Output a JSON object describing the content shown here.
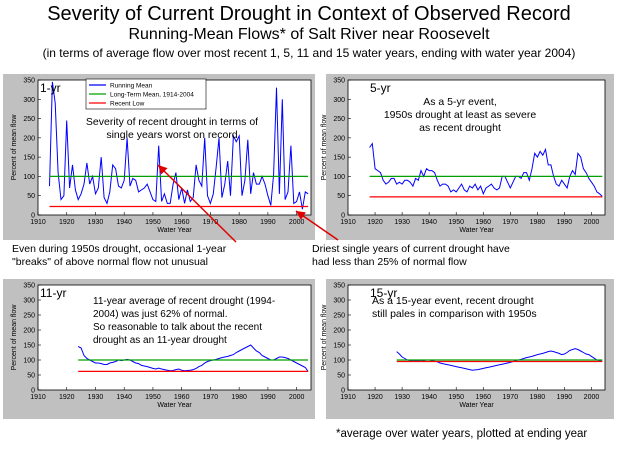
{
  "header": {
    "title": "Severity of Current Drought in Context of Observed Record",
    "subtitle": "Running-Mean Flows* of Salt River near Roosevelt",
    "subtitle2": "(in terms of average flow over most recent 1, 5, 11 and 15 water years, ending with water year 2004)"
  },
  "footnote": "*average over water years, plotted at ending year",
  "notes": {
    "n1950s": [
      "Even during 1950s drought, occasional 1-year",
      "\"breaks\" of above normal flow not unusual"
    ],
    "ndriest": [
      "Driest single years of current drought have",
      "had less than 25% of normal flow"
    ]
  },
  "colors": {
    "running": "#0000ff",
    "longterm": "#00a000",
    "recent": "#ff0000",
    "arrow": "#e00000",
    "panel": "#c0c0c0"
  },
  "chart_data": [
    {
      "type": "line",
      "label": "1-yr",
      "ylabel": "Percent of mean flow",
      "xlabel": "Water Year",
      "xlim": [
        1910,
        2005
      ],
      "ylim": [
        0,
        350
      ],
      "xticks": [
        1910,
        1920,
        1930,
        1940,
        1950,
        1960,
        1970,
        1980,
        1990,
        2000
      ],
      "yticks": [
        0,
        50,
        100,
        150,
        200,
        250,
        300,
        350
      ],
      "legend": {
        "entries": [
          "Running Mean",
          "Long-Term Mean, 1914-2004",
          "Recent Low"
        ],
        "placement": "top"
      },
      "annotation": [
        "Severity of recent drought in terms of",
        "single years worst on record"
      ],
      "series": [
        {
          "name": "Running Mean",
          "x": [
            1914,
            1915,
            1916,
            1917,
            1918,
            1919,
            1920,
            1921,
            1922,
            1923,
            1924,
            1925,
            1926,
            1927,
            1928,
            1929,
            1930,
            1931,
            1932,
            1933,
            1934,
            1935,
            1936,
            1937,
            1938,
            1939,
            1940,
            1941,
            1942,
            1943,
            1944,
            1945,
            1946,
            1947,
            1948,
            1949,
            1950,
            1951,
            1952,
            1953,
            1954,
            1955,
            1956,
            1957,
            1958,
            1959,
            1960,
            1961,
            1962,
            1963,
            1964,
            1965,
            1966,
            1967,
            1968,
            1969,
            1970,
            1971,
            1972,
            1973,
            1974,
            1975,
            1976,
            1977,
            1978,
            1979,
            1980,
            1981,
            1982,
            1983,
            1984,
            1985,
            1986,
            1987,
            1988,
            1989,
            1990,
            1991,
            1992,
            1993,
            1994,
            1995,
            1996,
            1997,
            1998,
            1999,
            2000,
            2001,
            2002,
            2003,
            2004
          ],
          "values": [
            75,
            345,
            290,
            110,
            40,
            50,
            245,
            70,
            130,
            65,
            40,
            55,
            80,
            135,
            80,
            100,
            55,
            70,
            150,
            45,
            30,
            60,
            130,
            120,
            75,
            70,
            90,
            200,
            75,
            95,
            90,
            60,
            65,
            70,
            80,
            60,
            40,
            35,
            180,
            35,
            55,
            30,
            30,
            80,
            110,
            40,
            70,
            30,
            65,
            35,
            45,
            130,
            90,
            75,
            200,
            50,
            30,
            55,
            125,
            200,
            45,
            80,
            140,
            50,
            205,
            190,
            205,
            50,
            90,
            195,
            55,
            110,
            80,
            80,
            100,
            80,
            50,
            25,
            105,
            330,
            55,
            300,
            40,
            60,
            180,
            30,
            35,
            60,
            15,
            60,
            55
          ]
        },
        {
          "name": "Long-Term Mean, 1914-2004",
          "x": [
            1914,
            2004
          ],
          "values": [
            100,
            100
          ]
        },
        {
          "name": "Recent Low",
          "x": [
            1914,
            2004
          ],
          "values": [
            22,
            22
          ]
        }
      ]
    },
    {
      "type": "line",
      "label": "5-yr",
      "ylabel": "Percent of mean flow",
      "xlabel": "Water Year",
      "xlim": [
        1910,
        2005
      ],
      "ylim": [
        0,
        350
      ],
      "xticks": [
        1910,
        1920,
        1930,
        1940,
        1950,
        1960,
        1970,
        1980,
        1990,
        2000
      ],
      "yticks": [
        0,
        50,
        100,
        150,
        200,
        250,
        300,
        350
      ],
      "annotation": [
        "As a 5-yr event,",
        "1950s drought at least as severe",
        "as recent drought"
      ],
      "series": [
        {
          "name": "Running Mean",
          "x": [
            1918,
            1919,
            1920,
            1921,
            1922,
            1923,
            1924,
            1925,
            1926,
            1927,
            1928,
            1929,
            1930,
            1931,
            1932,
            1933,
            1934,
            1935,
            1936,
            1937,
            1938,
            1939,
            1940,
            1941,
            1942,
            1943,
            1944,
            1945,
            1946,
            1947,
            1948,
            1949,
            1950,
            1951,
            1952,
            1953,
            1954,
            1955,
            1956,
            1957,
            1958,
            1959,
            1960,
            1961,
            1962,
            1963,
            1964,
            1965,
            1966,
            1967,
            1968,
            1969,
            1970,
            1971,
            1972,
            1973,
            1974,
            1975,
            1976,
            1977,
            1978,
            1979,
            1980,
            1981,
            1982,
            1983,
            1984,
            1985,
            1986,
            1987,
            1988,
            1989,
            1990,
            1991,
            1992,
            1993,
            1994,
            1995,
            1996,
            1997,
            1998,
            1999,
            2000,
            2001,
            2002,
            2003,
            2004
          ],
          "values": [
            175,
            185,
            120,
            115,
            110,
            90,
            80,
            85,
            95,
            95,
            80,
            85,
            80,
            90,
            90,
            85,
            75,
            95,
            90,
            115,
            100,
            120,
            115,
            115,
            110,
            90,
            75,
            80,
            80,
            75,
            60,
            65,
            60,
            70,
            80,
            65,
            60,
            75,
            70,
            80,
            65,
            75,
            55,
            70,
            75,
            80,
            70,
            65,
            70,
            100,
            100,
            85,
            70,
            85,
            100,
            100,
            95,
            110,
            110,
            90,
            120,
            160,
            150,
            165,
            155,
            170,
            130,
            130,
            100,
            80,
            75,
            90,
            80,
            70,
            100,
            115,
            105,
            160,
            150,
            120,
            110,
            95,
            85,
            75,
            60,
            55,
            48
          ]
        },
        {
          "name": "Long-Term Mean, 1914-2004",
          "x": [
            1918,
            2004
          ],
          "values": [
            100,
            100
          ]
        },
        {
          "name": "Recent Low",
          "x": [
            1918,
            2004
          ],
          "values": [
            47,
            47
          ]
        }
      ]
    },
    {
      "type": "line",
      "label": "11-yr",
      "ylabel": "Percent of mean flow",
      "xlabel": "Water Year",
      "xlim": [
        1910,
        2005
      ],
      "ylim": [
        0,
        350
      ],
      "xticks": [
        1910,
        1920,
        1930,
        1940,
        1950,
        1960,
        1970,
        1980,
        1990,
        2000
      ],
      "yticks": [
        0,
        50,
        100,
        150,
        200,
        250,
        300,
        350
      ],
      "annotation": [
        "11-year average of recent drought (1994-",
        "2004) was just  62% of normal.",
        "So reasonable to talk about the recent",
        "drought as an 11-year drought"
      ],
      "series": [
        {
          "name": "Running Mean",
          "x": [
            1924,
            1925,
            1926,
            1927,
            1928,
            1929,
            1930,
            1931,
            1932,
            1933,
            1934,
            1935,
            1936,
            1937,
            1938,
            1939,
            1940,
            1941,
            1942,
            1943,
            1944,
            1945,
            1946,
            1947,
            1948,
            1949,
            1950,
            1951,
            1952,
            1953,
            1954,
            1955,
            1956,
            1957,
            1958,
            1959,
            1960,
            1961,
            1962,
            1963,
            1964,
            1965,
            1966,
            1967,
            1968,
            1969,
            1970,
            1971,
            1972,
            1973,
            1974,
            1975,
            1976,
            1977,
            1978,
            1979,
            1980,
            1981,
            1982,
            1983,
            1984,
            1985,
            1986,
            1987,
            1988,
            1989,
            1990,
            1991,
            1992,
            1993,
            1994,
            1995,
            1996,
            1997,
            1998,
            1999,
            2000,
            2001,
            2002,
            2003,
            2004
          ],
          "values": [
            145,
            140,
            115,
            105,
            100,
            95,
            90,
            90,
            88,
            85,
            85,
            90,
            92,
            95,
            100,
            98,
            100,
            102,
            100,
            95,
            90,
            88,
            82,
            80,
            78,
            75,
            72,
            70,
            73,
            70,
            68,
            66,
            64,
            65,
            68,
            70,
            66,
            64,
            65,
            66,
            68,
            72,
            78,
            82,
            90,
            95,
            98,
            100,
            102,
            105,
            108,
            110,
            112,
            115,
            118,
            125,
            130,
            135,
            140,
            145,
            150,
            140,
            130,
            125,
            115,
            110,
            105,
            100,
            100,
            105,
            110,
            110,
            108,
            105,
            100,
            95,
            90,
            85,
            80,
            75,
            62
          ]
        },
        {
          "name": "Long-Term Mean, 1914-2004",
          "x": [
            1924,
            2004
          ],
          "values": [
            100,
            100
          ]
        },
        {
          "name": "Recent Low",
          "x": [
            1924,
            2004
          ],
          "values": [
            62,
            62
          ]
        }
      ]
    },
    {
      "type": "line",
      "label": "15-yr",
      "ylabel": "Percent of mean flow",
      "xlabel": "Water Year",
      "xlim": [
        1910,
        2005
      ],
      "ylim": [
        0,
        350
      ],
      "xticks": [
        1910,
        1920,
        1930,
        1940,
        1950,
        1960,
        1970,
        1980,
        1990,
        2000
      ],
      "yticks": [
        0,
        50,
        100,
        150,
        200,
        250,
        300,
        350
      ],
      "annotation": [
        "As a 15-year event, recent drought",
        "still pales in comparison with 1950s"
      ],
      "series": [
        {
          "name": "Running Mean",
          "x": [
            1928,
            1929,
            1930,
            1931,
            1932,
            1933,
            1934,
            1935,
            1936,
            1937,
            1938,
            1939,
            1940,
            1941,
            1942,
            1943,
            1944,
            1945,
            1946,
            1947,
            1948,
            1949,
            1950,
            1951,
            1952,
            1953,
            1954,
            1955,
            1956,
            1957,
            1958,
            1959,
            1960,
            1961,
            1962,
            1963,
            1964,
            1965,
            1966,
            1967,
            1968,
            1969,
            1970,
            1971,
            1972,
            1973,
            1974,
            1975,
            1976,
            1977,
            1978,
            1979,
            1980,
            1981,
            1982,
            1983,
            1984,
            1985,
            1986,
            1987,
            1988,
            1989,
            1990,
            1991,
            1992,
            1993,
            1994,
            1995,
            1996,
            1997,
            1998,
            1999,
            2000,
            2001,
            2002,
            2003,
            2004
          ],
          "values": [
            128,
            120,
            110,
            105,
            100,
            98,
            97,
            97,
            98,
            96,
            98,
            100,
            100,
            98,
            96,
            94,
            90,
            88,
            86,
            84,
            82,
            80,
            78,
            76,
            74,
            72,
            70,
            68,
            66,
            67,
            68,
            70,
            72,
            74,
            76,
            78,
            80,
            82,
            84,
            86,
            88,
            90,
            92,
            95,
            98,
            100,
            102,
            105,
            108,
            110,
            112,
            115,
            118,
            120,
            122,
            125,
            128,
            130,
            128,
            125,
            122,
            118,
            120,
            125,
            132,
            135,
            138,
            135,
            130,
            125,
            120,
            118,
            112,
            106,
            100,
            98,
            95
          ]
        },
        {
          "name": "Long-Term Mean, 1914-2004",
          "x": [
            1928,
            2004
          ],
          "values": [
            100,
            100
          ]
        },
        {
          "name": "Recent Low",
          "x": [
            1928,
            2004
          ],
          "values": [
            95,
            95
          ]
        }
      ]
    }
  ]
}
